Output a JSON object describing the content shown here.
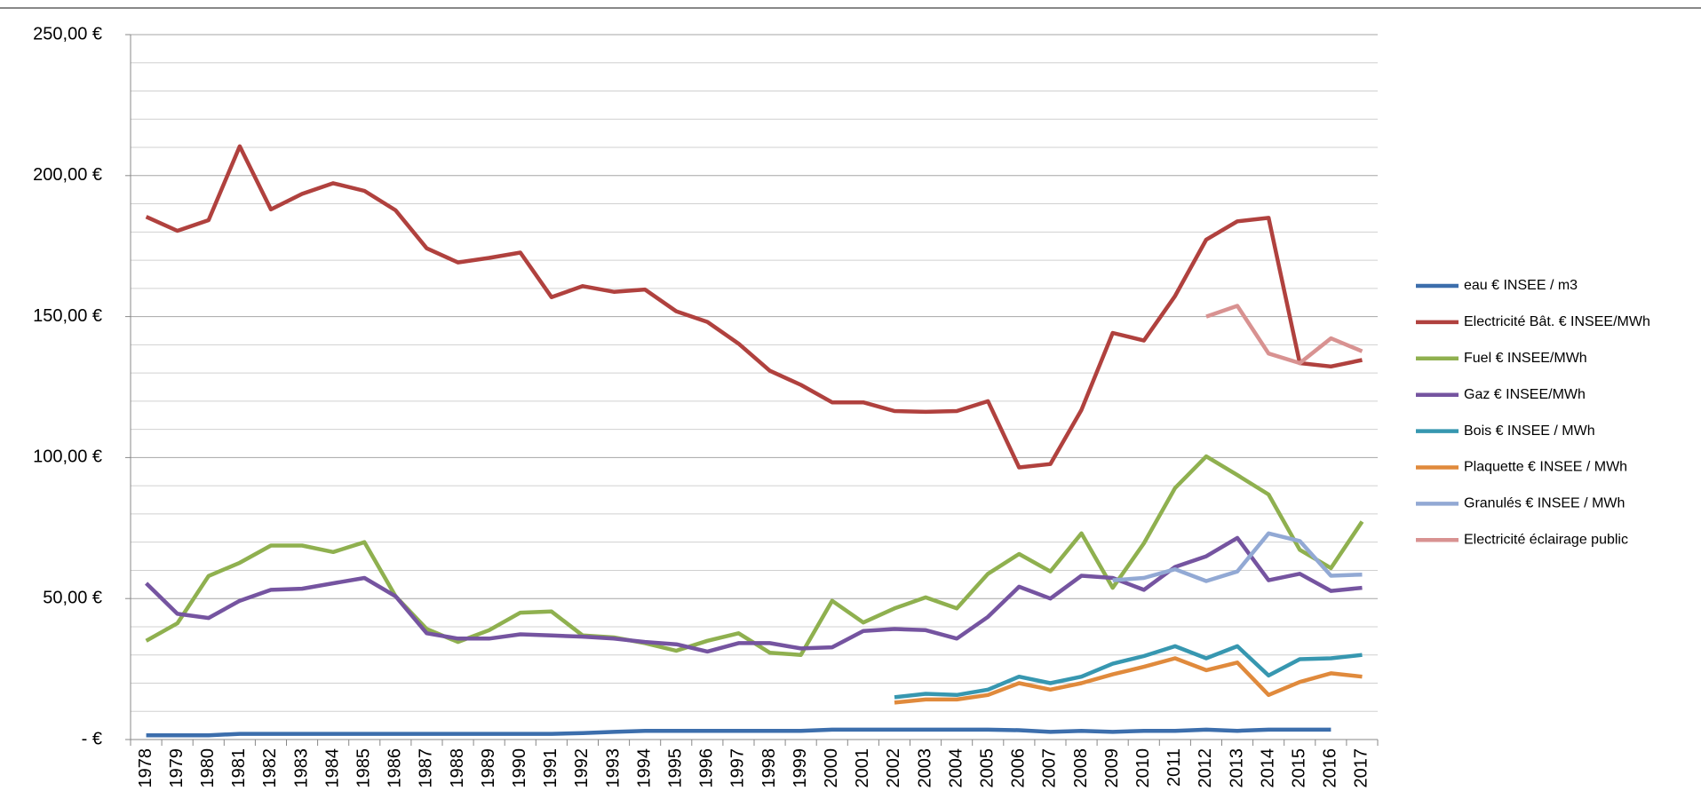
{
  "chart_data": {
    "type": "line",
    "categories": [
      "1978",
      "1979",
      "1980",
      "1981",
      "1982",
      "1983",
      "1984",
      "1985",
      "1986",
      "1987",
      "1988",
      "1989",
      "1990",
      "1991",
      "1992",
      "1993",
      "1994",
      "1995",
      "1996",
      "1997",
      "1998",
      "1999",
      "2000",
      "2001",
      "2002",
      "2003",
      "2004",
      "2005",
      "2006",
      "2007",
      "2008",
      "2009",
      "2010",
      "2011",
      "2012",
      "2013",
      "2014",
      "2015",
      "2016",
      "2017"
    ],
    "ylim": [
      0,
      250
    ],
    "yticks": [
      {
        "value": 0,
        "label": "-   €"
      },
      {
        "value": 50,
        "label": "50,00 €"
      },
      {
        "value": 100,
        "label": "100,00 €"
      },
      {
        "value": 150,
        "label": "150,00 €"
      },
      {
        "value": 200,
        "label": "200,00 €"
      },
      {
        "value": 250,
        "label": "250,00 €"
      }
    ],
    "minor_yticks": [
      10,
      20,
      30,
      40,
      60,
      70,
      80,
      90,
      110,
      120,
      130,
      140,
      160,
      170,
      180,
      190,
      210,
      220,
      230,
      240
    ],
    "grid": true,
    "legend": "right",
    "series": [
      {
        "name": "eau € INSEE / m3",
        "color": "#3c6eac",
        "values": [
          1.5,
          1.5,
          1.5,
          2,
          2,
          2,
          2,
          2,
          2,
          2,
          2,
          2,
          2,
          2,
          2.3,
          2.7,
          3.1,
          3.1,
          3.1,
          3.1,
          3.1,
          3.1,
          3.5,
          3.5,
          3.5,
          3.5,
          3.5,
          3.5,
          3.3,
          2.7,
          3.1,
          2.7,
          3.1,
          3.1,
          3.5,
          3.1,
          3.5,
          3.5,
          3.5,
          null
        ]
      },
      {
        "name": "Electricité Bât. € INSEE/MWh",
        "color": "#b0413e",
        "values": [
          185.4,
          180.4,
          184.2,
          210.4,
          188,
          193.5,
          197.3,
          194.6,
          187.7,
          174.2,
          169.2,
          170.8,
          172.7,
          156.9,
          160.8,
          158.8,
          159.6,
          151.9,
          148.1,
          140.4,
          130.8,
          125.8,
          119.6,
          119.6,
          116.5,
          116.2,
          116.5,
          120,
          96.5,
          97.7,
          116.9,
          144.2,
          141.5,
          157.3,
          177.3,
          183.8,
          185,
          133.5,
          132.3,
          134.6
        ]
      },
      {
        "name": "Fuel € INSEE/MWh",
        "color": "#8fb04f",
        "values": [
          35,
          41.2,
          58,
          62.7,
          68.8,
          68.8,
          66.5,
          70,
          50.8,
          39.2,
          34.6,
          38.8,
          45,
          45.4,
          36.9,
          36.2,
          34.2,
          31.5,
          35,
          37.7,
          30.8,
          30,
          49.2,
          41.5,
          46.5,
          50.4,
          46.5,
          58.8,
          65.8,
          59.6,
          73.1,
          53.8,
          69.6,
          89.2,
          100.4,
          93.8,
          86.9,
          67.3,
          60.8,
          77.3
        ]
      },
      {
        "name": "Gaz € INSEE/MWh",
        "color": "#7554a0",
        "values": [
          55.4,
          44.6,
          43.1,
          49.2,
          53.1,
          53.5,
          55.4,
          57.3,
          50.8,
          37.7,
          35.8,
          35.8,
          37.3,
          36.9,
          36.5,
          35.8,
          34.6,
          33.8,
          31.2,
          34.2,
          34.2,
          32.3,
          32.7,
          38.5,
          39.2,
          38.8,
          35.8,
          43.5,
          54.2,
          50,
          58.1,
          57.3,
          53.1,
          61.2,
          65,
          71.5,
          56.5,
          58.8,
          52.7,
          53.8
        ]
      },
      {
        "name": "Bois € INSEE / MWh",
        "color": "#3797b0",
        "values": [
          null,
          null,
          null,
          null,
          null,
          null,
          null,
          null,
          null,
          null,
          null,
          null,
          null,
          null,
          null,
          null,
          null,
          null,
          null,
          null,
          null,
          null,
          null,
          null,
          15,
          16.2,
          15.8,
          17.7,
          22.3,
          20,
          22.3,
          26.9,
          29.6,
          33.1,
          28.8,
          33.1,
          22.7,
          28.5,
          28.8,
          30
        ]
      },
      {
        "name": "Plaquette € INSEE / MWh",
        "color": "#e08a3c",
        "values": [
          null,
          null,
          null,
          null,
          null,
          null,
          null,
          null,
          null,
          null,
          null,
          null,
          null,
          null,
          null,
          null,
          null,
          null,
          null,
          null,
          null,
          null,
          null,
          null,
          13.1,
          14.2,
          14.2,
          15.8,
          20,
          17.7,
          20,
          23.1,
          25.8,
          28.8,
          24.6,
          27.3,
          15.8,
          20.4,
          23.5,
          22.3
        ]
      },
      {
        "name": "Granulés € INSEE / MWh",
        "color": "#92a9d4",
        "values": [
          null,
          null,
          null,
          null,
          null,
          null,
          null,
          null,
          null,
          null,
          null,
          null,
          null,
          null,
          null,
          null,
          null,
          null,
          null,
          null,
          null,
          null,
          null,
          null,
          null,
          null,
          null,
          null,
          null,
          null,
          null,
          56.5,
          57.3,
          60.4,
          56.2,
          59.6,
          73.1,
          70.4,
          58.1,
          58.5
        ]
      },
      {
        "name": "Electricité éclairage public",
        "color": "#d89291",
        "values": [
          null,
          null,
          null,
          null,
          null,
          null,
          null,
          null,
          null,
          null,
          null,
          null,
          null,
          null,
          null,
          null,
          null,
          null,
          null,
          null,
          null,
          null,
          null,
          null,
          null,
          null,
          null,
          null,
          null,
          null,
          null,
          null,
          null,
          null,
          150,
          153.8,
          136.9,
          133.5,
          142.3,
          137.7
        ]
      }
    ]
  }
}
